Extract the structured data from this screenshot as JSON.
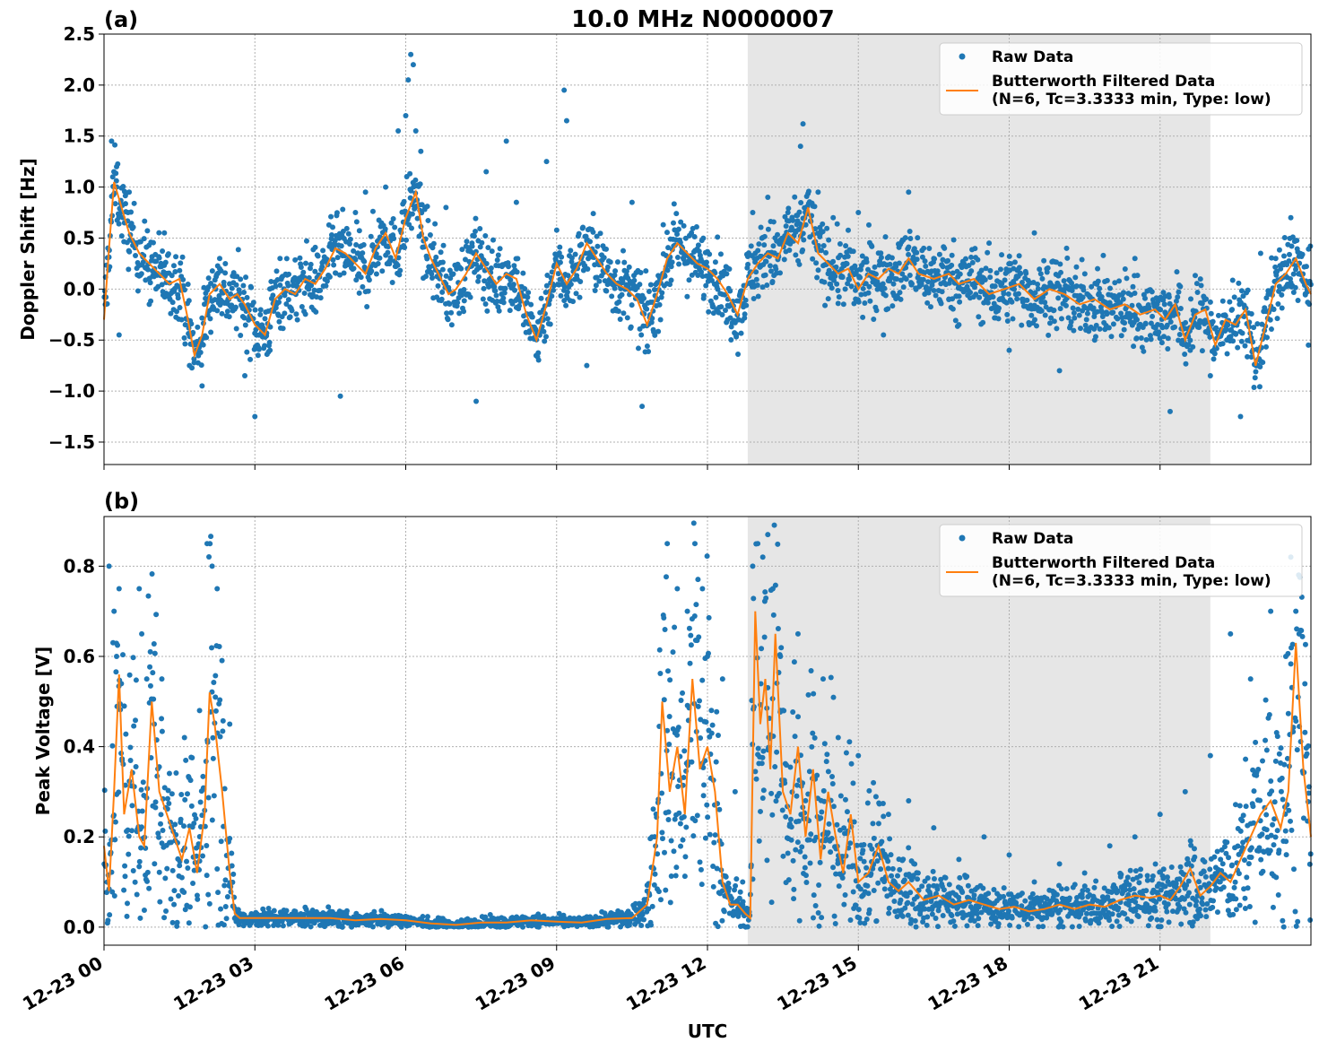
{
  "figure": {
    "title": "10.0 MHz N0000007",
    "xlabel": "UTC"
  },
  "chart_data": [
    {
      "type": "scatter",
      "panel_label": "(a)",
      "title": "10.0 MHz N0000007",
      "xlabel": "",
      "ylabel": "Doppler Shift [Hz]",
      "xlim": [
        0,
        24
      ],
      "ylim": [
        -1.72,
        2.5
      ],
      "x_tick_values": [
        0,
        3,
        6,
        9,
        12,
        15,
        18,
        21
      ],
      "yticks": [
        -1.5,
        -1.0,
        -0.5,
        0.0,
        0.5,
        1.0,
        1.5,
        2.0,
        2.5
      ],
      "ytick_labels": [
        "−1.5",
        "−1.0",
        "−0.5",
        "0.0",
        "0.5",
        "1.0",
        "1.5",
        "2.0",
        "2.5"
      ],
      "shaded_region": {
        "x_start": 12.8,
        "x_end": 22.0,
        "color": "#e6e6e6"
      },
      "grid": true,
      "legend": {
        "placement": "top-right",
        "entries": [
          "Raw Data",
          "Butterworth Filtered Data\n(N=6, Tc=3.3333 min, Type: low)"
        ]
      },
      "series": [
        {
          "name": "Butterworth Filtered Data\n(N=6, Tc=3.3333 min, Type: low)",
          "style": "line",
          "color": "#ff7f0e",
          "x": [
            0.0,
            0.1,
            0.2,
            0.35,
            0.5,
            0.7,
            0.9,
            1.1,
            1.3,
            1.5,
            1.65,
            1.8,
            1.95,
            2.1,
            2.3,
            2.5,
            2.65,
            2.8,
            3.0,
            3.2,
            3.4,
            3.6,
            3.8,
            4.0,
            4.2,
            4.4,
            4.6,
            4.8,
            5.0,
            5.2,
            5.4,
            5.6,
            5.8,
            6.0,
            6.2,
            6.35,
            6.5,
            6.7,
            6.85,
            7.0,
            7.2,
            7.4,
            7.6,
            7.8,
            8.0,
            8.2,
            8.4,
            8.6,
            8.8,
            9.0,
            9.2,
            9.4,
            9.6,
            9.8,
            10.0,
            10.2,
            10.4,
            10.6,
            10.8,
            11.0,
            11.2,
            11.4,
            11.6,
            11.8,
            12.0,
            12.2,
            12.4,
            12.6,
            12.8,
            13.0,
            13.2,
            13.4,
            13.6,
            13.8,
            14.0,
            14.2,
            14.4,
            14.6,
            14.8,
            15.0,
            15.2,
            15.4,
            15.6,
            15.8,
            16.0,
            16.2,
            16.5,
            16.8,
            17.0,
            17.3,
            17.6,
            17.9,
            18.2,
            18.5,
            18.8,
            19.1,
            19.4,
            19.7,
            20.0,
            20.3,
            20.6,
            20.9,
            21.1,
            21.3,
            21.5,
            21.7,
            21.9,
            22.1,
            22.3,
            22.5,
            22.7,
            22.9,
            23.1,
            23.3,
            23.5,
            23.7,
            23.9,
            24.0
          ],
          "y": [
            -0.3,
            0.4,
            1.05,
            0.8,
            0.55,
            0.35,
            0.25,
            0.15,
            0.05,
            0.1,
            -0.25,
            -0.65,
            -0.45,
            -0.05,
            0.05,
            -0.1,
            -0.05,
            -0.15,
            -0.35,
            -0.45,
            -0.1,
            0.0,
            -0.05,
            0.1,
            0.05,
            0.2,
            0.4,
            0.35,
            0.25,
            0.15,
            0.4,
            0.55,
            0.3,
            0.7,
            0.95,
            0.5,
            0.3,
            0.1,
            -0.05,
            0.0,
            0.15,
            0.35,
            0.2,
            0.05,
            0.15,
            0.1,
            -0.25,
            -0.5,
            -0.15,
            0.25,
            0.05,
            0.2,
            0.45,
            0.3,
            0.15,
            0.05,
            0.0,
            -0.1,
            -0.35,
            -0.05,
            0.3,
            0.45,
            0.35,
            0.25,
            0.2,
            0.1,
            -0.05,
            -0.25,
            0.1,
            0.25,
            0.35,
            0.3,
            0.55,
            0.45,
            0.8,
            0.35,
            0.25,
            0.15,
            0.2,
            0.0,
            0.15,
            0.1,
            0.2,
            0.15,
            0.3,
            0.15,
            0.1,
            0.15,
            0.05,
            0.1,
            -0.05,
            0.0,
            0.05,
            -0.1,
            0.0,
            -0.05,
            -0.15,
            -0.1,
            -0.2,
            -0.15,
            -0.25,
            -0.2,
            -0.3,
            -0.15,
            -0.5,
            -0.25,
            -0.2,
            -0.55,
            -0.3,
            -0.35,
            -0.2,
            -0.75,
            -0.35,
            0.05,
            0.15,
            0.3,
            0.05,
            -0.05
          ]
        },
        {
          "name": "Raw Data",
          "style": "markers",
          "color": "#1f77b4",
          "marker_size": 3,
          "x": [
            0.15,
            0.25,
            0.3,
            0.5,
            0.9,
            1.2,
            1.7,
            1.95,
            2.3,
            2.8,
            3.0,
            3.3,
            3.5,
            4.7,
            5.0,
            5.2,
            5.6,
            5.85,
            6.0,
            6.05,
            6.1,
            6.15,
            6.2,
            6.3,
            6.8,
            7.4,
            7.6,
            8.0,
            8.2,
            8.8,
            9.15,
            9.2,
            9.6,
            10.5,
            10.7,
            12.4,
            12.9,
            13.2,
            13.6,
            13.85,
            13.9,
            14.2,
            14.5,
            15.0,
            15.5,
            16.0,
            16.3,
            16.5,
            17.0,
            17.6,
            18.0,
            18.5,
            19.0,
            19.7,
            20.5,
            21.2,
            21.6,
            22.0,
            22.3,
            22.6,
            23.0,
            23.3,
            23.6,
            23.95
          ],
          "y": [
            1.45,
            1.2,
            -0.45,
            0.95,
            -0.15,
            0.55,
            -0.75,
            -0.95,
            0.3,
            -0.85,
            -1.25,
            -0.6,
            0.3,
            -1.05,
            0.75,
            0.95,
            1.0,
            1.55,
            1.7,
            2.05,
            2.3,
            2.2,
            1.55,
            1.35,
            0.8,
            -1.1,
            1.15,
            1.45,
            0.85,
            1.25,
            1.95,
            1.65,
            -0.75,
            0.85,
            -1.15,
            -0.3,
            0.75,
            0.9,
            0.75,
            1.4,
            1.62,
            0.95,
            0.7,
            0.75,
            -0.45,
            0.95,
            0.4,
            0.3,
            -0.35,
            0.45,
            -0.6,
            0.55,
            -0.8,
            -0.5,
            0.3,
            -1.2,
            -0.6,
            -0.85,
            -0.4,
            -1.25,
            0.35,
            0.3,
            0.7,
            -0.55
          ]
        }
      ]
    },
    {
      "type": "scatter",
      "panel_label": "(b)",
      "xlabel": "UTC",
      "ylabel": "Peak Voltage [V]",
      "xlim": [
        0,
        24
      ],
      "ylim": [
        -0.04,
        0.91
      ],
      "x_tick_values": [
        0,
        3,
        6,
        9,
        12,
        15,
        18,
        21
      ],
      "xtick_labels": [
        "12-23 00",
        "12-23 03",
        "12-23 06",
        "12-23 09",
        "12-23 12",
        "12-23 15",
        "12-23 18",
        "12-23 21"
      ],
      "yticks": [
        0.0,
        0.2,
        0.4,
        0.6,
        0.8
      ],
      "ytick_labels": [
        "0.0",
        "0.2",
        "0.4",
        "0.6",
        "0.8"
      ],
      "shaded_region": {
        "x_start": 12.8,
        "x_end": 22.0,
        "color": "#e6e6e6"
      },
      "grid": true,
      "legend": {
        "placement": "top-right",
        "entries": [
          "Raw Data",
          "Butterworth Filtered Data\n(N=6, Tc=3.3333 min, Type: low)"
        ]
      },
      "series": [
        {
          "name": "Butterworth Filtered Data\n(N=6, Tc=3.3333 min, Type: low)",
          "style": "line",
          "color": "#ff7f0e",
          "x": [
            0.0,
            0.1,
            0.2,
            0.3,
            0.4,
            0.55,
            0.7,
            0.8,
            0.95,
            1.1,
            1.25,
            1.4,
            1.55,
            1.7,
            1.85,
            2.0,
            2.1,
            2.2,
            2.35,
            2.5,
            2.6,
            2.7,
            3.0,
            3.5,
            4.0,
            4.5,
            5.0,
            5.5,
            6.0,
            6.5,
            7.0,
            7.5,
            8.0,
            8.5,
            9.0,
            9.5,
            10.0,
            10.5,
            10.8,
            11.0,
            11.1,
            11.25,
            11.4,
            11.55,
            11.7,
            11.85,
            12.0,
            12.15,
            12.3,
            12.45,
            12.6,
            12.75,
            12.85,
            12.95,
            13.05,
            13.15,
            13.25,
            13.35,
            13.5,
            13.65,
            13.8,
            13.95,
            14.1,
            14.25,
            14.4,
            14.55,
            14.7,
            14.85,
            15.0,
            15.2,
            15.4,
            15.6,
            15.8,
            16.0,
            16.3,
            16.6,
            16.9,
            17.2,
            17.5,
            17.8,
            18.1,
            18.4,
            18.7,
            19.0,
            19.3,
            19.6,
            19.9,
            20.2,
            20.5,
            20.8,
            21.0,
            21.2,
            21.4,
            21.6,
            21.8,
            22.0,
            22.2,
            22.4,
            22.6,
            22.8,
            23.0,
            23.2,
            23.4,
            23.55,
            23.7,
            23.85,
            24.0
          ],
          "y": [
            0.18,
            0.08,
            0.3,
            0.56,
            0.25,
            0.35,
            0.2,
            0.18,
            0.5,
            0.3,
            0.25,
            0.2,
            0.15,
            0.22,
            0.12,
            0.25,
            0.52,
            0.45,
            0.3,
            0.12,
            0.03,
            0.02,
            0.02,
            0.02,
            0.02,
            0.02,
            0.015,
            0.018,
            0.015,
            0.008,
            0.005,
            0.01,
            0.01,
            0.015,
            0.012,
            0.01,
            0.018,
            0.02,
            0.05,
            0.2,
            0.5,
            0.3,
            0.4,
            0.25,
            0.55,
            0.35,
            0.4,
            0.3,
            0.1,
            0.05,
            0.05,
            0.03,
            0.02,
            0.7,
            0.45,
            0.55,
            0.35,
            0.65,
            0.3,
            0.25,
            0.4,
            0.2,
            0.35,
            0.15,
            0.3,
            0.2,
            0.12,
            0.25,
            0.1,
            0.12,
            0.18,
            0.1,
            0.08,
            0.1,
            0.06,
            0.07,
            0.05,
            0.06,
            0.05,
            0.04,
            0.045,
            0.035,
            0.04,
            0.05,
            0.04,
            0.05,
            0.045,
            0.06,
            0.07,
            0.065,
            0.07,
            0.06,
            0.09,
            0.13,
            0.07,
            0.09,
            0.12,
            0.1,
            0.15,
            0.2,
            0.25,
            0.28,
            0.22,
            0.3,
            0.63,
            0.35,
            0.2
          ]
        },
        {
          "name": "Raw Data",
          "style": "markers",
          "color": "#1f77b4",
          "marker_size": 3,
          "x": [
            0.1,
            0.2,
            0.25,
            0.3,
            0.7,
            0.75,
            0.85,
            1.0,
            1.15,
            1.6,
            1.9,
            2.05,
            2.15,
            2.25,
            2.5,
            10.8,
            11.2,
            11.4,
            11.6,
            11.75,
            11.9,
            12.0,
            12.3,
            12.55,
            12.7,
            12.9,
            13.0,
            13.1,
            13.2,
            13.3,
            13.45,
            13.8,
            14.3,
            14.6,
            15.0,
            15.3,
            15.6,
            16.0,
            16.5,
            17.0,
            17.5,
            18.0,
            18.5,
            19.0,
            19.5,
            20.0,
            20.5,
            21.0,
            21.5,
            22.0,
            22.4,
            22.8,
            23.2,
            23.5,
            23.6,
            23.7
          ],
          "y": [
            0.8,
            0.7,
            0.6,
            0.75,
            0.75,
            0.65,
            0.55,
            0.45,
            0.55,
            0.42,
            0.48,
            0.85,
            0.8,
            0.75,
            0.45,
            0.08,
            0.85,
            0.75,
            0.7,
            0.85,
            0.75,
            0.6,
            0.55,
            0.3,
            0.1,
            0.8,
            0.85,
            0.82,
            0.87,
            0.75,
            0.6,
            0.65,
            0.55,
            0.42,
            0.38,
            0.32,
            0.25,
            0.28,
            0.22,
            0.15,
            0.2,
            0.16,
            0.1,
            0.14,
            0.12,
            0.18,
            0.2,
            0.25,
            0.3,
            0.38,
            0.65,
            0.55,
            0.7,
            0.6,
            0.82,
            0.7
          ]
        }
      ]
    }
  ]
}
